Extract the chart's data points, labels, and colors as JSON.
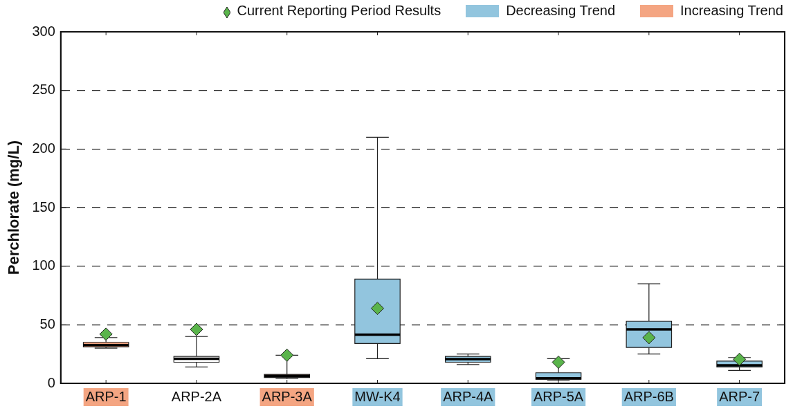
{
  "chart_data": {
    "type": "box",
    "ylabel": "Perchlorate (mg/L)",
    "categories": [
      "ARP-1",
      "ARP-2A",
      "ARP-3A",
      "MW-K4",
      "ARP-4A",
      "ARP-5A",
      "ARP-6B",
      "ARP-7"
    ],
    "ylim": [
      0,
      300
    ],
    "yticks": [
      0,
      50,
      100,
      150,
      200,
      250,
      300
    ],
    "grid": "y",
    "legend": "top",
    "series": [
      {
        "name": "Increasing Trend",
        "color": "#f4a582",
        "boxes": [
          {
            "low": 30,
            "q1": 31,
            "median": 32.7,
            "q3": 35,
            "high": 39
          },
          null,
          {
            "low": 4,
            "q1": 5,
            "median": 6.3,
            "q3": 7.6,
            "high": 24
          },
          null,
          null,
          null,
          null,
          null
        ]
      },
      {
        "color": "#ffffff",
        "boxes": [
          null,
          {
            "low": 14,
            "q1": 18,
            "median": 21,
            "q3": 23,
            "high": 40
          },
          null,
          null,
          null,
          null,
          null,
          null
        ]
      },
      {
        "name": "Decreasing Trend",
        "color": "#92c5de",
        "boxes": [
          null,
          null,
          null,
          {
            "low": 21,
            "q1": 34,
            "median": 41.5,
            "q3": 89,
            "high": 210
          },
          {
            "low": 16,
            "q1": 18,
            "median": 20.6,
            "q3": 23,
            "high": 25
          },
          {
            "low": 2.5,
            "q1": 3.5,
            "median": 4.3,
            "q3": 9,
            "high": 21
          },
          {
            "low": 25,
            "q1": 30.6,
            "median": 46,
            "q3": 53,
            "high": 85
          },
          {
            "low": 11,
            "q1": 14,
            "median": 15.4,
            "q3": 19,
            "high": 22
          }
        ]
      },
      {
        "name": "Current Reporting Period Results",
        "type": "scatter",
        "marker": "diamond",
        "color": "#5ab44b",
        "x": [
          "ARP-1",
          "ARP-2A",
          "ARP-3A",
          "MW-K4",
          "ARP-4A",
          "ARP-5A",
          "ARP-6B",
          "ARP-7"
        ],
        "values": [
          42,
          46,
          24,
          64,
          null,
          18,
          39,
          20.5
        ]
      }
    ]
  }
}
